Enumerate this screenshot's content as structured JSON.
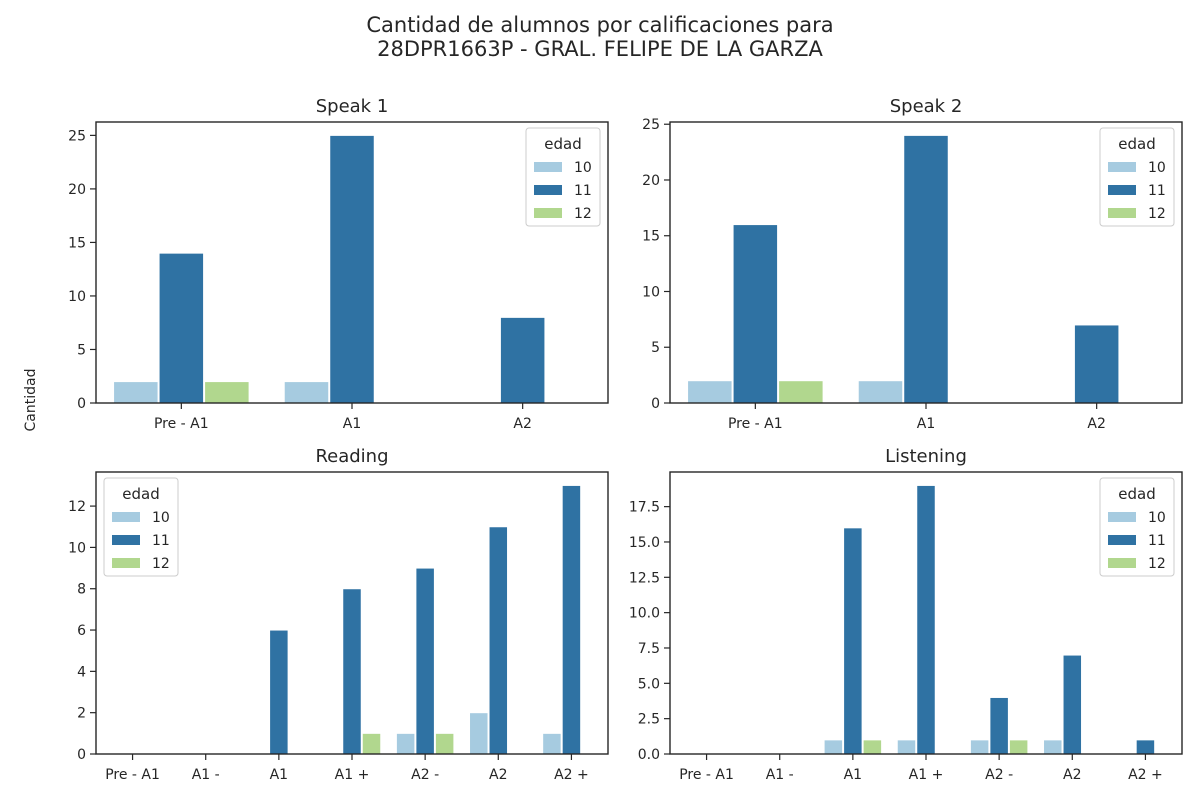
{
  "figure": {
    "title_line1": "Cantidad de alumnos por calificaciones para",
    "title_line2": "28DPR1663P - GRAL. FELIPE DE LA GARZA",
    "ylabel": "Cantidad"
  },
  "colors": {
    "10": "#a6cbe0",
    "11": "#2f72a3",
    "12": "#b1d78e"
  },
  "chart_data": [
    {
      "type": "bar",
      "title": "Speak 1",
      "categories": [
        "Pre - A1",
        "A1",
        "A2"
      ],
      "legend_title": "edad",
      "legend_placement": "top-right",
      "ylim": [
        0,
        26.25
      ],
      "yticks": [
        0,
        5,
        10,
        15,
        20,
        25
      ],
      "ytick_labels": [
        "0",
        "5",
        "10",
        "15",
        "20",
        "25"
      ],
      "series": [
        {
          "name": "10",
          "values": [
            2,
            2,
            0
          ]
        },
        {
          "name": "11",
          "values": [
            14,
            25,
            8
          ]
        },
        {
          "name": "12",
          "values": [
            2,
            0,
            0
          ]
        }
      ]
    },
    {
      "type": "bar",
      "title": "Speak 2",
      "categories": [
        "Pre - A1",
        "A1",
        "A2"
      ],
      "legend_title": "edad",
      "legend_placement": "top-right",
      "ylim": [
        0,
        25.2
      ],
      "yticks": [
        0,
        5,
        10,
        15,
        20,
        25
      ],
      "ytick_labels": [
        "0",
        "5",
        "10",
        "15",
        "20",
        "25"
      ],
      "series": [
        {
          "name": "10",
          "values": [
            2,
            2,
            0
          ]
        },
        {
          "name": "11",
          "values": [
            16,
            24,
            7
          ]
        },
        {
          "name": "12",
          "values": [
            2,
            0,
            0
          ]
        }
      ]
    },
    {
      "type": "bar",
      "title": "Reading",
      "categories": [
        "Pre - A1",
        "A1 -",
        "A1",
        "A1 +",
        "A2 -",
        "A2",
        "A2 +"
      ],
      "legend_title": "edad",
      "legend_placement": "top-left",
      "ylim": [
        0,
        13.65
      ],
      "yticks": [
        0,
        2,
        4,
        6,
        8,
        10,
        12
      ],
      "ytick_labels": [
        "0",
        "2",
        "4",
        "6",
        "8",
        "10",
        "12"
      ],
      "series": [
        {
          "name": "10",
          "values": [
            0,
            0,
            0,
            0,
            1,
            2,
            1
          ]
        },
        {
          "name": "11",
          "values": [
            0,
            0,
            6,
            8,
            9,
            11,
            13
          ]
        },
        {
          "name": "12",
          "values": [
            0,
            0,
            0,
            1,
            1,
            0,
            0
          ]
        }
      ]
    },
    {
      "type": "bar",
      "title": "Listening",
      "categories": [
        "Pre - A1",
        "A1 -",
        "A1",
        "A1 +",
        "A2 -",
        "A2",
        "A2 +"
      ],
      "legend_title": "edad",
      "legend_placement": "top-right",
      "ylim": [
        0,
        19.95
      ],
      "yticks": [
        0,
        2.5,
        5,
        7.5,
        10,
        12.5,
        15,
        17.5
      ],
      "ytick_labels": [
        "0.0",
        "2.5",
        "5.0",
        "7.5",
        "10.0",
        "12.5",
        "15.0",
        "17.5"
      ],
      "series": [
        {
          "name": "10",
          "values": [
            0,
            0,
            1,
            1,
            1,
            1,
            0
          ]
        },
        {
          "name": "11",
          "values": [
            0,
            0,
            16,
            19,
            4,
            7,
            1
          ]
        },
        {
          "name": "12",
          "values": [
            0,
            0,
            1,
            0,
            1,
            0,
            0
          ]
        }
      ]
    }
  ]
}
